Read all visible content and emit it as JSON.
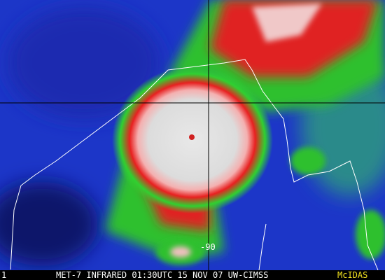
{
  "footer": {
    "frame": "1",
    "caption": "MET-7 INFRARED 01:30UTC 15 NOV 07 UW-CIMSS",
    "logo": "McIDAS"
  },
  "overlay": {
    "grid_label": "-90"
  }
}
